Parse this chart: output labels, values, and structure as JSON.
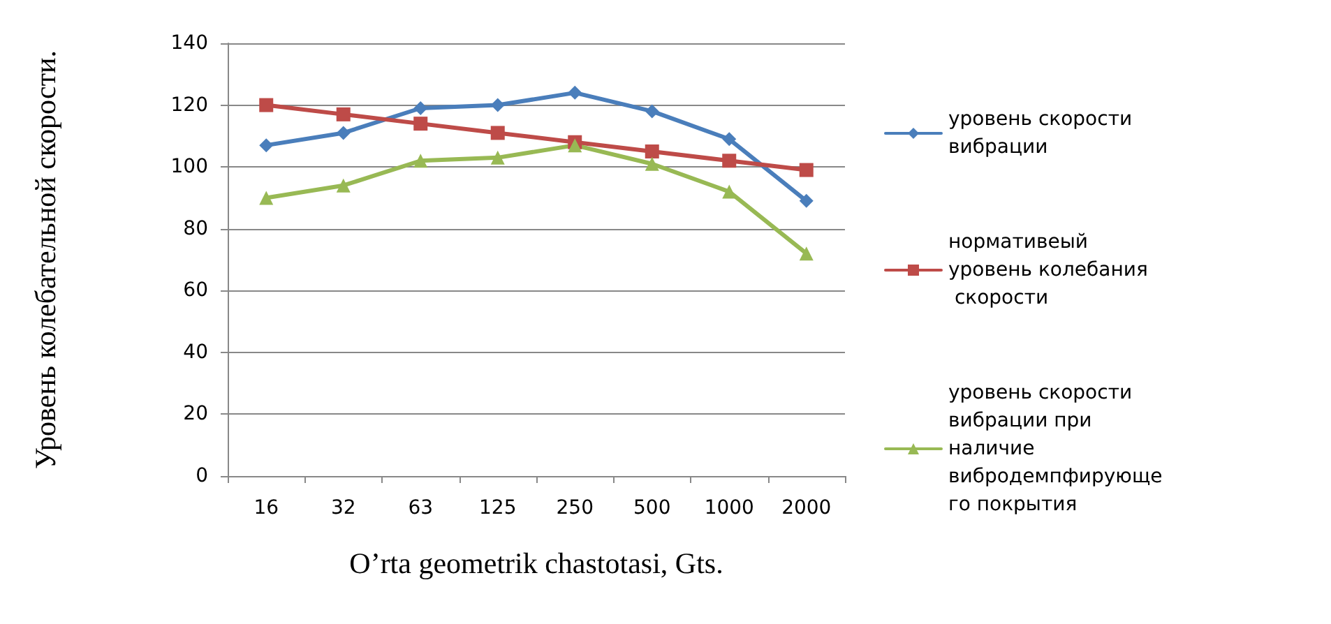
{
  "chart_data": {
    "type": "line",
    "xlabel": "O’rta geometrik chastotasi, Gts.",
    "ylabel": "Уровень колебательной скорости.",
    "categories": [
      "16",
      "32",
      "63",
      "125",
      "250",
      "500",
      "1000",
      "2000"
    ],
    "series": [
      {
        "name": "уровень скорости вибрации",
        "color": "#4a7ebb",
        "marker": "diamond",
        "values": [
          107,
          111,
          119,
          120,
          124,
          118,
          109,
          89
        ]
      },
      {
        "name": "нормативеый уровень колебания скорости",
        "color": "#be4b48",
        "marker": "square",
        "values": [
          120,
          117,
          114,
          111,
          108,
          105,
          102,
          99
        ]
      },
      {
        "name": "уровень скорости вибрации при наличие вибродемпфирующего покрытия",
        "color": "#98b954",
        "marker": "triangle",
        "values": [
          90,
          94,
          102,
          103,
          107,
          101,
          92,
          72
        ]
      }
    ],
    "ylim": [
      0,
      140
    ],
    "yticks": [
      0,
      20,
      40,
      60,
      80,
      100,
      120,
      140
    ],
    "grid": "y",
    "legend": "right",
    "line_style": "solid"
  }
}
